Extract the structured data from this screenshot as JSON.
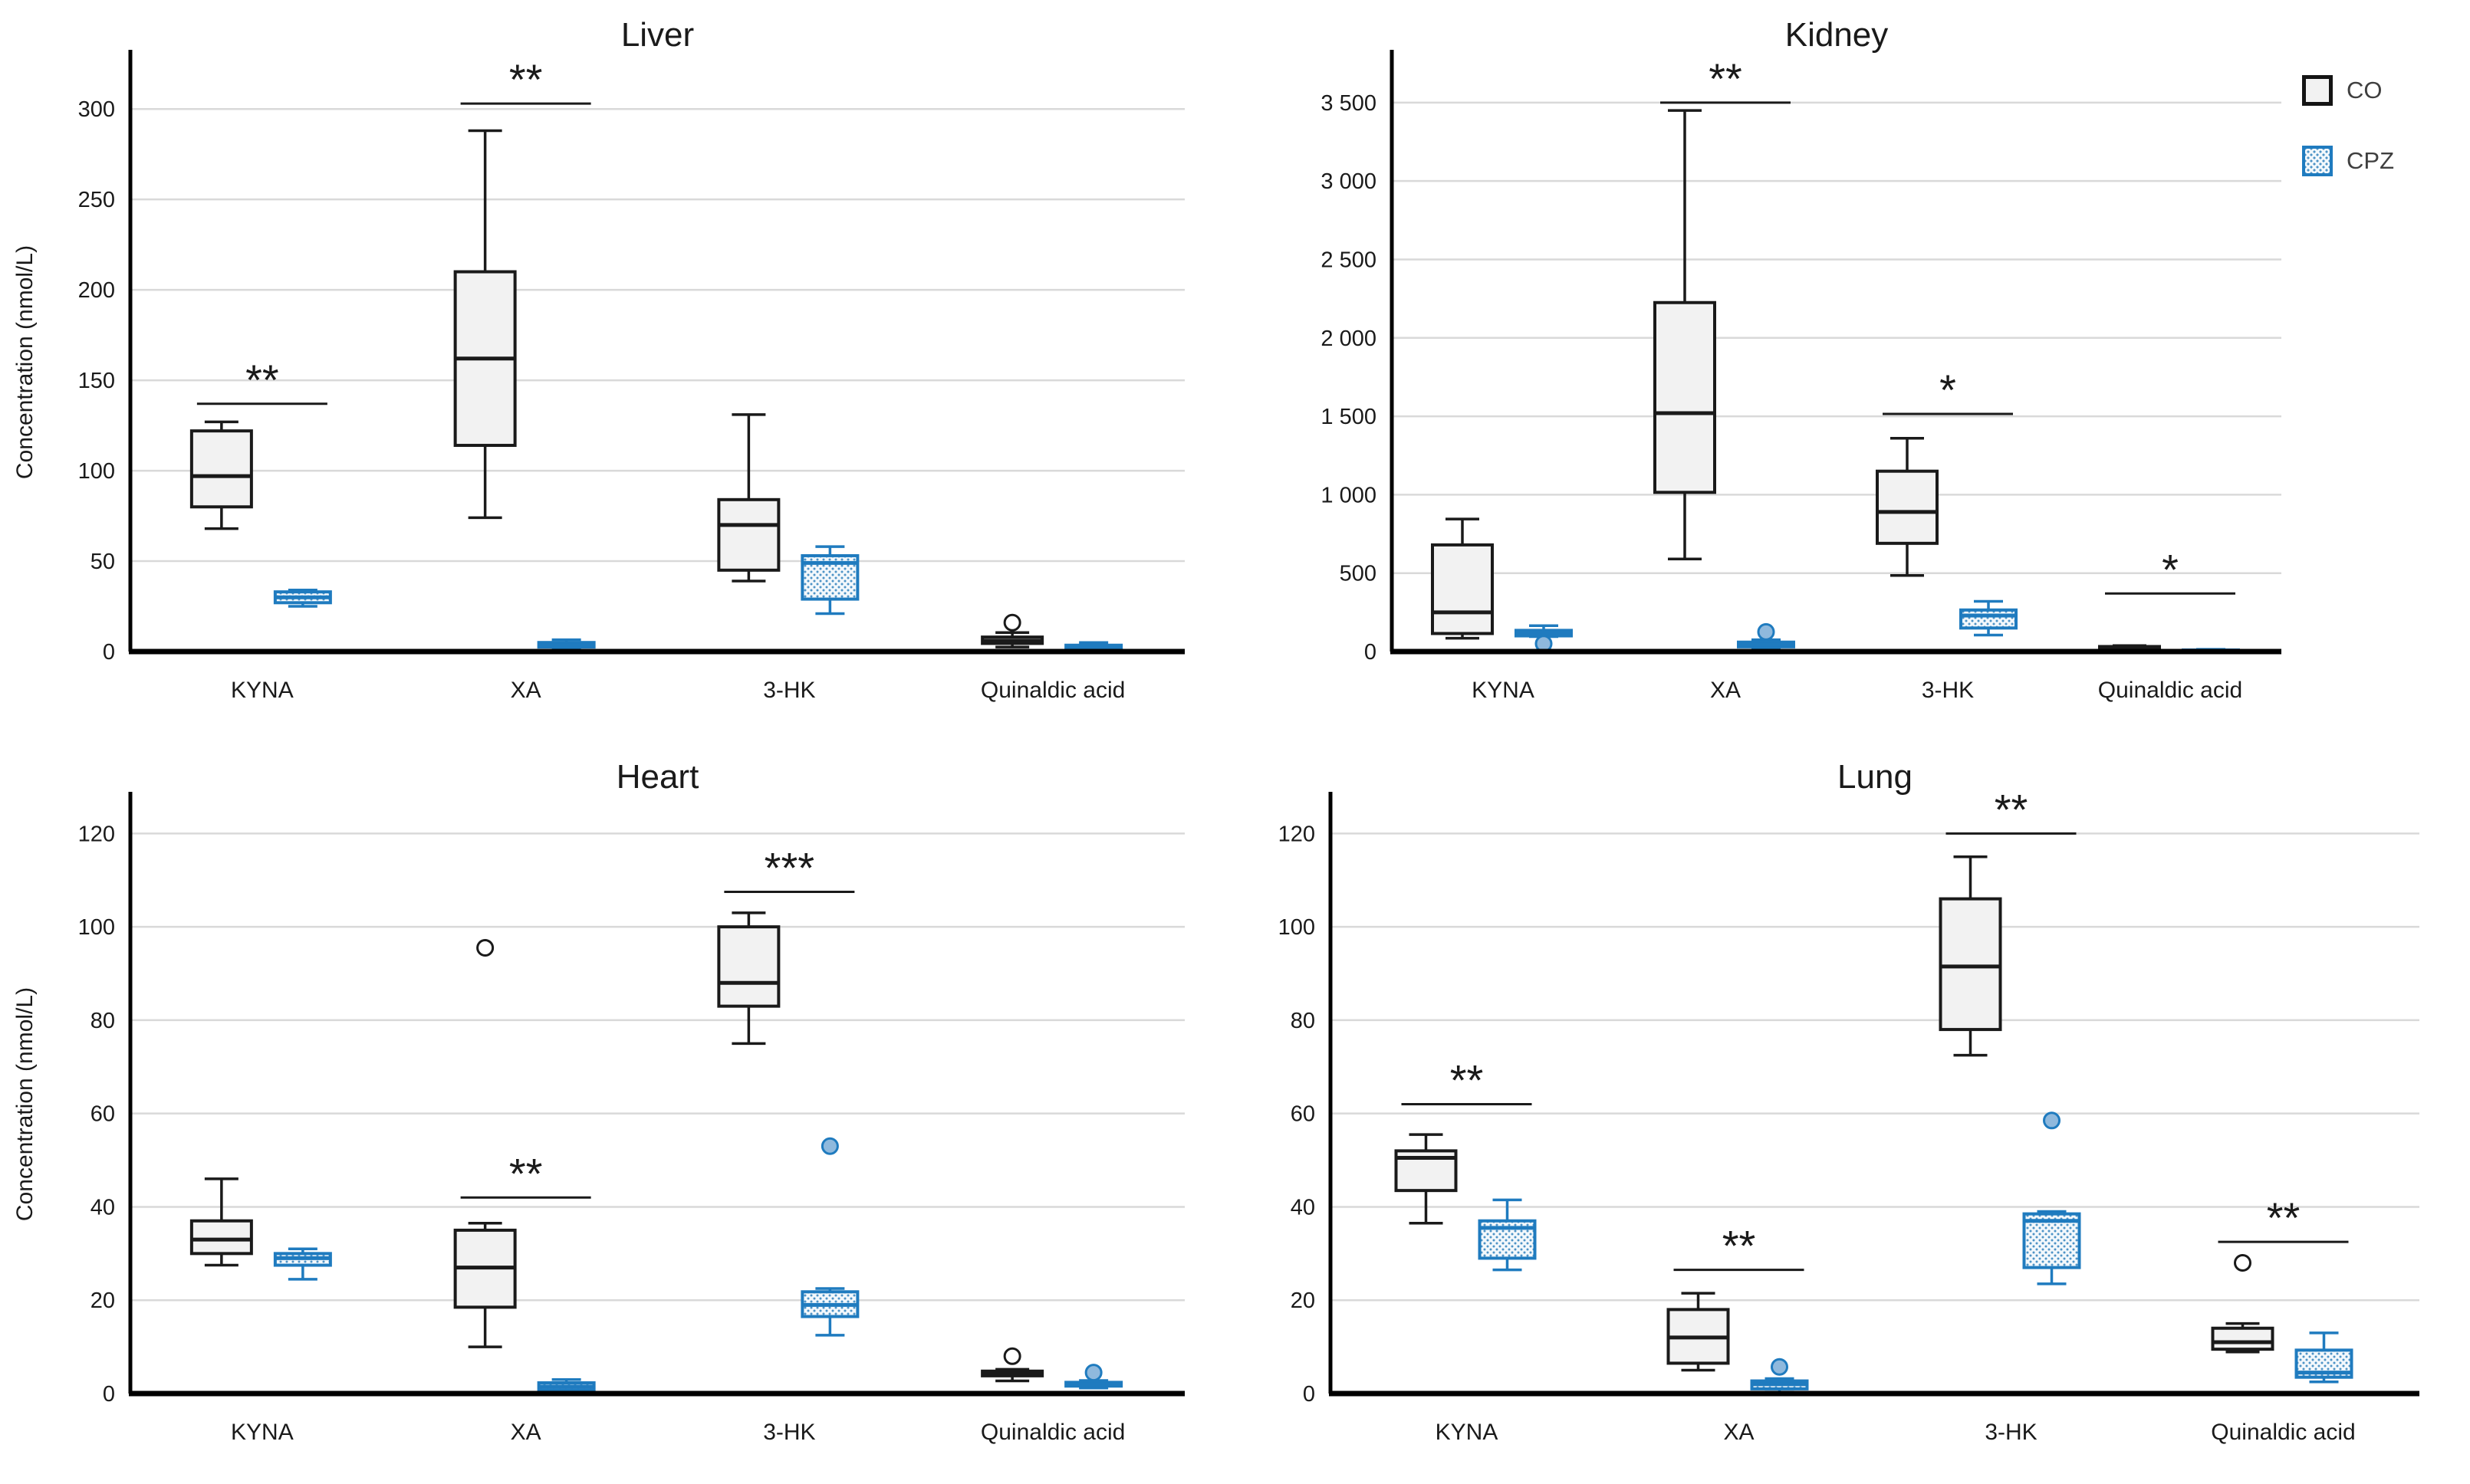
{
  "colors": {
    "background": "#ffffff",
    "grid": "#d9d9d9",
    "axis": "#000000",
    "co_fill": "#f2f2f2",
    "co_stroke": "#1a1a1a",
    "cpz_stroke": "#1f7bbf",
    "cpz_dot": "#4e93c6",
    "sig": "#1a1a1a",
    "text": "#1a1a1a",
    "legend_text": "#3f3f3f"
  },
  "legend": {
    "items": [
      {
        "label": "CO",
        "swatch": "co-swatch"
      },
      {
        "label": "CPZ",
        "swatch": "cpz-swatch"
      }
    ]
  },
  "chart_data": {
    "type": "boxplot-grid",
    "categories": [
      "KYNA",
      "XA",
      "3-HK",
      "Quinaldic acid"
    ],
    "series_names": [
      "CO",
      "CPZ"
    ],
    "ylabel": "Concentration (nmol/L)",
    "panels": [
      {
        "title": "Liver",
        "show_ylabel": true,
        "ylim": [
          0,
          320
        ],
        "yticks": [
          {
            "v": 0,
            "label": "0"
          },
          {
            "v": 50,
            "label": "50"
          },
          {
            "v": 100,
            "label": "100"
          },
          {
            "v": 150,
            "label": "150"
          },
          {
            "v": 200,
            "label": "200"
          },
          {
            "v": 250,
            "label": "250"
          },
          {
            "v": 300,
            "label": "300"
          }
        ],
        "boxes": {
          "CO": [
            {
              "whislo": 68,
              "q1": 80,
              "med": 97,
              "q3": 122,
              "whishi": 127,
              "outliers": []
            },
            {
              "whislo": 74,
              "q1": 114,
              "med": 162,
              "q3": 210,
              "whishi": 288,
              "outliers": []
            },
            {
              "whislo": 39,
              "q1": 45,
              "med": 70,
              "q3": 84,
              "whishi": 131,
              "outliers": []
            },
            {
              "whislo": 2.5,
              "q1": 4.5,
              "med": 6,
              "q3": 8,
              "whishi": 10.5,
              "outliers": [
                16
              ]
            }
          ],
          "CPZ": [
            {
              "whislo": 25,
              "q1": 27,
              "med": 30,
              "q3": 33,
              "whishi": 34,
              "outliers": []
            },
            {
              "whislo": 1.5,
              "q1": 2.5,
              "med": 3.5,
              "q3": 5,
              "whishi": 6.5,
              "outliers": []
            },
            {
              "whislo": 21,
              "q1": 29,
              "med": 49,
              "q3": 53,
              "whishi": 58,
              "outliers": []
            },
            {
              "whislo": 0.5,
              "q1": 1.5,
              "med": 2.5,
              "q3": 3.5,
              "whishi": 5,
              "outliers": []
            }
          ]
        },
        "sig": [
          {
            "cat": 0,
            "label": "**",
            "y": 137
          },
          {
            "cat": 1,
            "label": "**",
            "y": 303
          }
        ]
      },
      {
        "title": "Kidney",
        "show_ylabel": false,
        "ylim": [
          0,
          3690
        ],
        "yticks": [
          {
            "v": 0,
            "label": "0"
          },
          {
            "v": 500,
            "label": "500"
          },
          {
            "v": 1000,
            "label": "1 000"
          },
          {
            "v": 1500,
            "label": "1 500"
          },
          {
            "v": 2000,
            "label": "2 000"
          },
          {
            "v": 2500,
            "label": "2 500"
          },
          {
            "v": 3000,
            "label": "3 000"
          },
          {
            "v": 3500,
            "label": "3 500"
          }
        ],
        "boxes": {
          "CO": [
            {
              "whislo": 85,
              "q1": 115,
              "med": 250,
              "q3": 680,
              "whishi": 845,
              "outliers": []
            },
            {
              "whislo": 590,
              "q1": 1015,
              "med": 1520,
              "q3": 2225,
              "whishi": 3450,
              "outliers": []
            },
            {
              "whislo": 485,
              "q1": 690,
              "med": 890,
              "q3": 1150,
              "whishi": 1360,
              "outliers": []
            },
            {
              "whislo": 5,
              "q1": 10,
              "med": 20,
              "q3": 32,
              "whishi": 38,
              "outliers": []
            }
          ],
          "CPZ": [
            {
              "whislo": 95,
              "q1": 100,
              "med": 120,
              "q3": 135,
              "whishi": 165,
              "outliers": [
                50
              ]
            },
            {
              "whislo": 15,
              "q1": 30,
              "med": 45,
              "q3": 60,
              "whishi": 75,
              "outliers": [
                125
              ]
            },
            {
              "whislo": 105,
              "q1": 150,
              "med": 230,
              "q3": 265,
              "whishi": 320,
              "outliers": []
            },
            {
              "whislo": 1,
              "q1": 2,
              "med": 5,
              "q3": 10,
              "whishi": 14,
              "outliers": []
            }
          ]
        },
        "sig": [
          {
            "cat": 1,
            "label": "**",
            "y": 3500
          },
          {
            "cat": 2,
            "label": "*",
            "y": 1515
          },
          {
            "cat": 3,
            "label": "*",
            "y": 370
          }
        ]
      },
      {
        "title": "Heart",
        "show_ylabel": true,
        "ylim": [
          0,
          124
        ],
        "yticks": [
          {
            "v": 0,
            "label": "0"
          },
          {
            "v": 20,
            "label": "20"
          },
          {
            "v": 40,
            "label": "40"
          },
          {
            "v": 60,
            "label": "60"
          },
          {
            "v": 80,
            "label": "80"
          },
          {
            "v": 100,
            "label": "100"
          },
          {
            "v": 120,
            "label": "120"
          }
        ],
        "boxes": {
          "CO": [
            {
              "whislo": 27.5,
              "q1": 30,
              "med": 33,
              "q3": 37,
              "whishi": 46,
              "outliers": []
            },
            {
              "whislo": 10,
              "q1": 18.5,
              "med": 27,
              "q3": 35,
              "whishi": 36.5,
              "outliers": [
                95.5
              ]
            },
            {
              "whislo": 75,
              "q1": 83,
              "med": 88,
              "q3": 100,
              "whishi": 103,
              "outliers": []
            },
            {
              "whislo": 2.7,
              "q1": 3.8,
              "med": 4.3,
              "q3": 4.8,
              "whishi": 5.2,
              "outliers": [
                8
              ]
            }
          ],
          "CPZ": [
            {
              "whislo": 24.5,
              "q1": 27.5,
              "med": 29,
              "q3": 30,
              "whishi": 31,
              "outliers": []
            },
            {
              "whislo": 0.3,
              "q1": 0.8,
              "med": 1.5,
              "q3": 2.3,
              "whishi": 3,
              "outliers": []
            },
            {
              "whislo": 12.5,
              "q1": 16.5,
              "med": 19,
              "q3": 21.8,
              "whishi": 22.5,
              "outliers": [
                53
              ]
            },
            {
              "whislo": 1.2,
              "q1": 1.6,
              "med": 2,
              "q3": 2.4,
              "whishi": 2.8,
              "outliers": [
                4.5
              ]
            }
          ]
        },
        "sig": [
          {
            "cat": 1,
            "label": "**",
            "y": 42
          },
          {
            "cat": 2,
            "label": "***",
            "y": 107.5
          }
        ]
      },
      {
        "title": "Lung",
        "show_ylabel": false,
        "ylim": [
          0,
          124
        ],
        "yticks": [
          {
            "v": 0,
            "label": "0"
          },
          {
            "v": 20,
            "label": "20"
          },
          {
            "v": 40,
            "label": "40"
          },
          {
            "v": 60,
            "label": "60"
          },
          {
            "v": 80,
            "label": "80"
          },
          {
            "v": 100,
            "label": "100"
          },
          {
            "v": 120,
            "label": "120"
          }
        ],
        "boxes": {
          "CO": [
            {
              "whislo": 36.5,
              "q1": 43.5,
              "med": 50.5,
              "q3": 52,
              "whishi": 55.5,
              "outliers": []
            },
            {
              "whislo": 5,
              "q1": 6.5,
              "med": 12,
              "q3": 18,
              "whishi": 21.5,
              "outliers": []
            },
            {
              "whislo": 72.5,
              "q1": 78,
              "med": 91.5,
              "q3": 106,
              "whishi": 115,
              "outliers": []
            },
            {
              "whislo": 8.9,
              "q1": 9.5,
              "med": 11,
              "q3": 14,
              "whishi": 15,
              "outliers": [
                28
              ]
            }
          ],
          "CPZ": [
            {
              "whislo": 26.5,
              "q1": 29,
              "med": 35.5,
              "q3": 37,
              "whishi": 41.5,
              "outliers": []
            },
            {
              "whislo": 0.3,
              "q1": 1,
              "med": 2,
              "q3": 2.7,
              "whishi": 3.2,
              "outliers": [
                5.7
              ]
            },
            {
              "whislo": 23.5,
              "q1": 27,
              "med": 37,
              "q3": 38.5,
              "whishi": 39,
              "outliers": [
                58.5
              ]
            },
            {
              "whislo": 2.5,
              "q1": 3.5,
              "med": 4.5,
              "q3": 9.3,
              "whishi": 13,
              "outliers": []
            }
          ]
        },
        "sig": [
          {
            "cat": 0,
            "label": "**",
            "y": 62
          },
          {
            "cat": 1,
            "label": "**",
            "y": 26.5
          },
          {
            "cat": 2,
            "label": "**",
            "y": 120
          },
          {
            "cat": 3,
            "label": "**",
            "y": 32.5
          }
        ]
      }
    ]
  }
}
